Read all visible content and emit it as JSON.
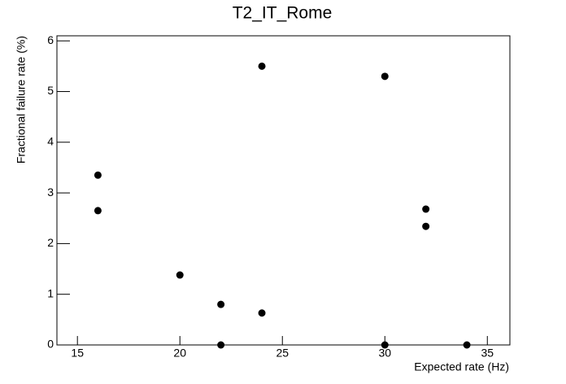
{
  "chart_data": {
    "type": "scatter",
    "title": "T2_IT_Rome",
    "x_label": "Expected rate (Hz)",
    "y_label": "Fractional failure rate (%)",
    "x": [
      16,
      16,
      20,
      22,
      22,
      24,
      24,
      30,
      30,
      32,
      32,
      34
    ],
    "values": [
      3.35,
      2.65,
      1.38,
      0.8,
      0,
      5.5,
      0.63,
      5.3,
      0,
      2.68,
      2.34,
      0
    ],
    "color": "#000000",
    "xlim": [
      14,
      36.1
    ],
    "ylim": [
      0,
      6.1
    ],
    "xticks": [
      15,
      20,
      25,
      30,
      35
    ],
    "yticks": [
      0,
      1,
      2,
      3,
      4,
      5,
      6
    ]
  }
}
